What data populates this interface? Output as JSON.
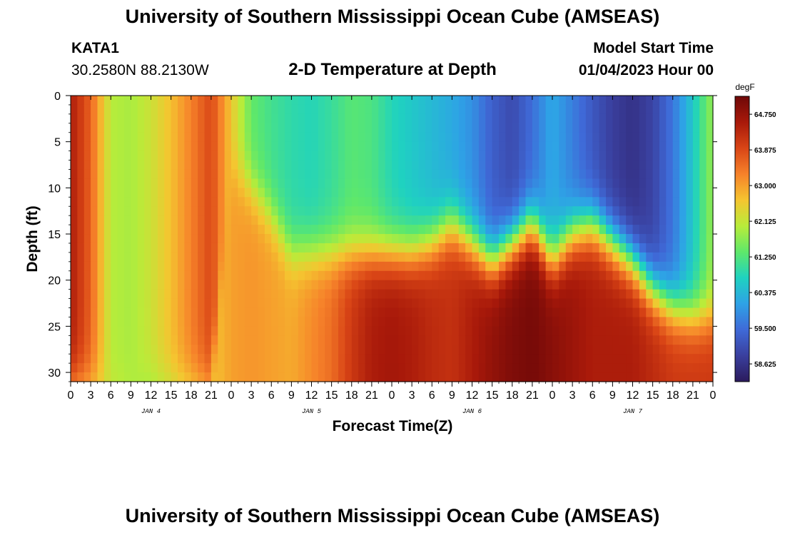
{
  "header": {
    "title": "University of Southern Mississippi Ocean Cube (AMSEAS)",
    "station": "KATA1",
    "coords": "30.2580N  88.2130W",
    "chart_title": "2-D Temperature at Depth",
    "model_start_label": "Model Start Time",
    "model_start_value": "01/04/2023 Hour 00"
  },
  "footer": {
    "title": "University of Southern Mississippi Ocean Cube (AMSEAS)"
  },
  "chart_data": {
    "type": "heatmap",
    "title": "2-D Temperature at Depth",
    "xlabel": "Forecast Time(Z)",
    "ylabel": "Depth (ft)",
    "x_ticks": [
      "0",
      "3",
      "6",
      "9",
      "12",
      "15",
      "18",
      "21",
      "0",
      "3",
      "6",
      "9",
      "12",
      "15",
      "18",
      "21",
      "0",
      "3",
      "6",
      "9",
      "12",
      "15",
      "18",
      "21",
      "0",
      "3",
      "6",
      "9",
      "12",
      "15",
      "18",
      "21",
      "0"
    ],
    "day_labels": [
      {
        "label": "JAN 4",
        "hour": 12
      },
      {
        "label": "JAN 5",
        "hour": 36
      },
      {
        "label": "JAN 6",
        "hour": 60
      },
      {
        "label": "JAN 7",
        "hour": 84
      }
    ],
    "x_range_hours": [
      0,
      96
    ],
    "y_ticks": [
      0,
      5,
      10,
      15,
      20,
      25,
      30
    ],
    "y_range": [
      0,
      31
    ],
    "colorbar": {
      "unit": "degF",
      "min": 58.19,
      "max": 65.19,
      "tick_values": [
        "64.750",
        "63.875",
        "63.000",
        "62.125",
        "61.250",
        "60.375",
        "59.500",
        "58.625"
      ],
      "colors": [
        "#2b1a5c",
        "#3a3f9e",
        "#3f6ad8",
        "#2ea2e6",
        "#1fd2c0",
        "#5fe86a",
        "#b8ec3a",
        "#f5c530",
        "#f6822a",
        "#d94516",
        "#a8190a",
        "#6e0808"
      ]
    },
    "field_model": {
      "time_knots": [
        0,
        3,
        6,
        9,
        12,
        15,
        18,
        21,
        24,
        27,
        30,
        33,
        36,
        39,
        42,
        45,
        48,
        51,
        54,
        57,
        60,
        63,
        66,
        69,
        72,
        75,
        78,
        81,
        84,
        87,
        90,
        93,
        96
      ],
      "thermocline_depth": [
        31,
        31,
        31,
        31,
        31,
        31,
        31,
        31,
        8,
        10,
        13,
        17,
        17,
        17,
        17,
        17,
        17,
        17,
        16,
        14,
        16,
        18,
        16,
        14,
        18,
        15,
        14,
        16,
        18,
        21,
        23,
        24,
        24
      ],
      "surface_temp": [
        64.5,
        63.6,
        62.0,
        61.9,
        62.2,
        62.7,
        63.3,
        63.9,
        62.6,
        61.4,
        61.1,
        60.9,
        60.8,
        61.0,
        61.3,
        61.2,
        60.8,
        60.6,
        60.4,
        60.2,
        59.9,
        59.3,
        59.0,
        59.5,
        60.2,
        59.7,
        59.2,
        58.8,
        58.6,
        58.9,
        59.6,
        60.6,
        61.8
      ],
      "deep_temp": [
        62.6,
        62.4,
        62.2,
        62.0,
        61.7,
        61.9,
        62.2,
        62.6,
        63.0,
        63.1,
        63.0,
        62.9,
        63.2,
        63.5,
        64.1,
        64.5,
        64.6,
        64.5,
        64.3,
        64.2,
        64.5,
        64.8,
        65.0,
        65.1,
        64.9,
        64.7,
        64.5,
        64.5,
        64.5,
        64.3,
        64.1,
        64.1,
        64.1
      ]
    }
  }
}
